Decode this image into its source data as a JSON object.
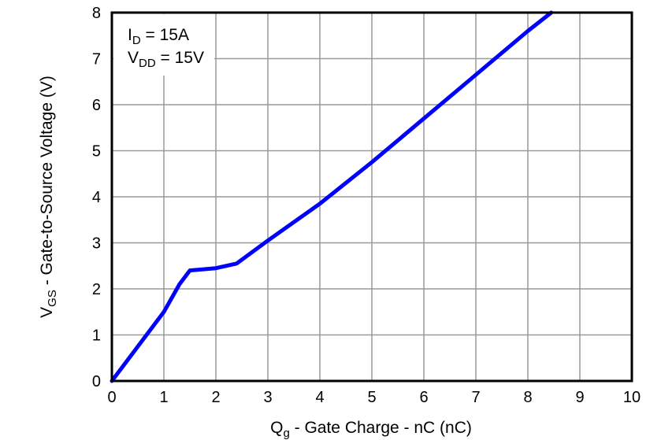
{
  "chart_data": {
    "type": "line",
    "title": "",
    "xlabel": "Qg - Gate Charge - nC (nC)",
    "xlabel_main": "Q",
    "xlabel_sub": "g",
    "xlabel_rest": " - Gate Charge - nC (nC)",
    "ylabel": "VGS - Gate-to-Source Voltage (V)",
    "ylabel_main": "V",
    "ylabel_sub": "GS",
    "ylabel_rest": " - Gate-to-Source Voltage (V)",
    "xlim": [
      0,
      10
    ],
    "ylim": [
      0,
      8
    ],
    "xticks": [
      "0",
      "1",
      "2",
      "3",
      "4",
      "5",
      "6",
      "7",
      "8",
      "9",
      "10"
    ],
    "yticks": [
      "0",
      "1",
      "2",
      "3",
      "4",
      "5",
      "6",
      "7",
      "8"
    ],
    "grid": true,
    "legend": "none",
    "line_color": "#0000ff",
    "annotations": [
      {
        "main": "I",
        "sub": "D",
        "rest": " = 15A"
      },
      {
        "main": "V",
        "sub": "DD",
        "rest": " = 15V"
      }
    ],
    "series": [
      {
        "name": "VGS",
        "x": [
          0,
          0.5,
          1.0,
          1.3,
          1.5,
          2.0,
          2.4,
          3.0,
          4.0,
          5.0,
          6.0,
          7.0,
          8.0,
          8.45
        ],
        "y": [
          0,
          0.75,
          1.5,
          2.1,
          2.4,
          2.45,
          2.55,
          3.05,
          3.85,
          4.75,
          5.7,
          6.65,
          7.6,
          8.0
        ]
      }
    ]
  }
}
